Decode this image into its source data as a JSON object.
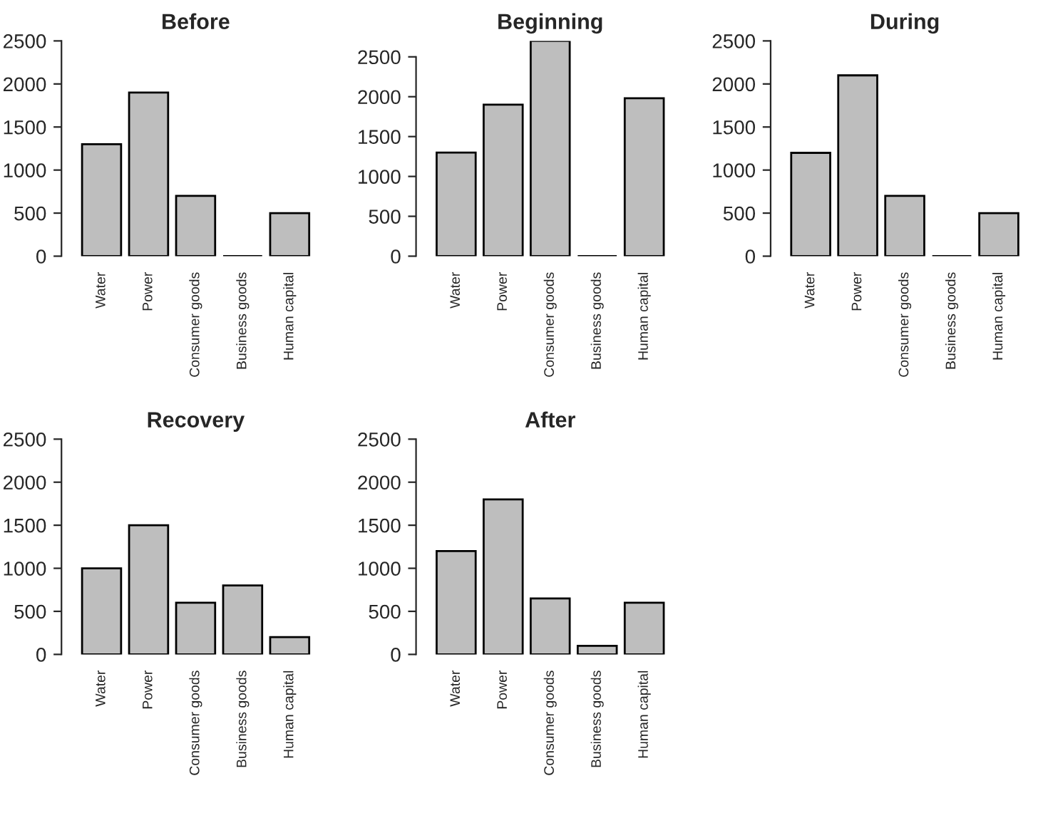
{
  "chart_data": [
    {
      "type": "bar",
      "title": "Before",
      "categories": [
        "Water",
        "Power",
        "Consumer goods",
        "Business goods",
        "Human capital"
      ],
      "values": [
        1300,
        1900,
        700,
        0,
        500
      ],
      "colors": [
        "#bebebe",
        "#bebebe",
        "#bebebe",
        "#000000",
        "#bebebe"
      ],
      "ylim": [
        0,
        2500
      ],
      "yticks": [
        0,
        500,
        1000,
        1500,
        2000,
        2500
      ],
      "grid": false
    },
    {
      "type": "bar",
      "title": "Beginning",
      "categories": [
        "Water",
        "Power",
        "Consumer goods",
        "Business goods",
        "Human capital"
      ],
      "values": [
        1300,
        1900,
        2700,
        0,
        1980
      ],
      "colors": [
        "#bebebe",
        "#bebebe",
        "#bebebe",
        "#000000",
        "#bebebe"
      ],
      "ylim": [
        0,
        2700
      ],
      "yticks": [
        0,
        500,
        1000,
        1500,
        2000,
        2500
      ],
      "grid": false
    },
    {
      "type": "bar",
      "title": "During",
      "categories": [
        "Water",
        "Power",
        "Consumer goods",
        "Business goods",
        "Human capital"
      ],
      "values": [
        1200,
        2100,
        700,
        0,
        500
      ],
      "colors": [
        "#bebebe",
        "#bebebe",
        "#bebebe",
        "#000000",
        "#bebebe"
      ],
      "ylim": [
        0,
        2500
      ],
      "yticks": [
        0,
        500,
        1000,
        1500,
        2000,
        2500
      ],
      "grid": false
    },
    {
      "type": "bar",
      "title": "Recovery",
      "categories": [
        "Water",
        "Power",
        "Consumer goods",
        "Business goods",
        "Human capital"
      ],
      "values": [
        1000,
        1500,
        600,
        800,
        200
      ],
      "color": "#bebebe",
      "ylim": [
        0,
        2500
      ],
      "yticks": [
        0,
        500,
        1000,
        1500,
        2000,
        2500
      ],
      "grid": false
    },
    {
      "type": "bar",
      "title": "After",
      "categories": [
        "Water",
        "Power",
        "Consumer goods",
        "Business goods",
        "Human capital"
      ],
      "values": [
        1200,
        1800,
        650,
        100,
        600
      ],
      "color": "#bebebe",
      "ylim": [
        0,
        2500
      ],
      "yticks": [
        0,
        500,
        1000,
        1500,
        2000,
        2500
      ],
      "grid": false
    }
  ]
}
